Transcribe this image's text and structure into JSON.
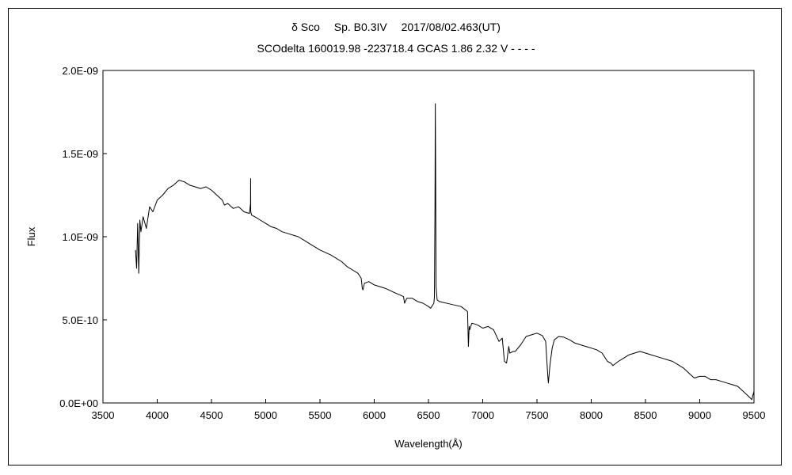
{
  "chart_data": {
    "type": "line",
    "title": "δ Sco　 Sp. B0.3IV　 2017/08/02.463(UT)",
    "subtitle": "SCOdelta 160019.98 -223718.4 GCAS 1.86 2.32 V - - - -",
    "xlabel": "Wavelength(Å)",
    "ylabel": "Flux",
    "xlim": [
      3500,
      9500
    ],
    "ylim": [
      0,
      2e-09
    ],
    "x_ticks": [
      3500,
      4000,
      4500,
      5000,
      5500,
      6000,
      6500,
      7000,
      7500,
      8000,
      8500,
      9000,
      9500
    ],
    "x_tick_labels": [
      "3500",
      "4000",
      "4500",
      "5000",
      "5500",
      "6000",
      "6500",
      "7000",
      "7500",
      "8000",
      "8500",
      "9000",
      "9500"
    ],
    "y_ticks": [
      0,
      5e-10,
      1e-09,
      1.5e-09,
      2e-09
    ],
    "y_tick_labels": [
      "0.0E+00",
      "5.0E-10",
      "1.0E-09",
      "1.5E-09",
      "2.0E-09"
    ],
    "grid": false,
    "legend": "none",
    "line_color": "#000000",
    "series": [
      {
        "x": [
          3800,
          3810,
          3820,
          3830,
          3840,
          3850,
          3870,
          3900,
          3930,
          3960,
          4000,
          4050,
          4100,
          4150,
          4200,
          4250,
          4300,
          4350,
          4400,
          4450,
          4500,
          4550,
          4600,
          4620,
          4650,
          4700,
          4750,
          4800,
          4850,
          4860,
          4861,
          4862,
          4870,
          4900,
          4950,
          5000,
          5050,
          5100,
          5150,
          5200,
          5300,
          5400,
          5500,
          5600,
          5700,
          5750,
          5800,
          5850,
          5880,
          5890,
          5896,
          5910,
          5950,
          6000,
          6100,
          6200,
          6270,
          6280,
          6300,
          6350,
          6400,
          6450,
          6500,
          6520,
          6550,
          6555,
          6560,
          6563,
          6566,
          6570,
          6580,
          6600,
          6700,
          6800,
          6860,
          6868,
          6875,
          6880,
          6900,
          6950,
          7000,
          7050,
          7100,
          7150,
          7180,
          7200,
          7220,
          7240,
          7250,
          7280,
          7300,
          7350,
          7400,
          7450,
          7500,
          7550,
          7580,
          7600,
          7605,
          7620,
          7640,
          7660,
          7700,
          7750,
          7800,
          7850,
          7900,
          7950,
          8000,
          8050,
          8100,
          8150,
          8180,
          8200,
          8250,
          8300,
          8350,
          8400,
          8450,
          8500,
          8550,
          8600,
          8650,
          8700,
          8750,
          8800,
          8850,
          8900,
          8950,
          9000,
          9050,
          9100,
          9150,
          9200,
          9250,
          9300,
          9350,
          9400,
          9450,
          9480,
          9500
        ],
        "values": [
          9.2e-10,
          8.1e-10,
          1.08e-09,
          7.8e-10,
          1.1e-09,
          1.03e-09,
          1.12e-09,
          1.05e-09,
          1.18e-09,
          1.15e-09,
          1.22e-09,
          1.25e-09,
          1.29e-09,
          1.31e-09,
          1.34e-09,
          1.33e-09,
          1.31e-09,
          1.3e-09,
          1.29e-09,
          1.3e-09,
          1.28e-09,
          1.25e-09,
          1.22e-09,
          1.19e-09,
          1.2e-09,
          1.17e-09,
          1.18e-09,
          1.15e-09,
          1.14e-09,
          1.2e-09,
          1.35e-09,
          1.15e-09,
          1.13e-09,
          1.12e-09,
          1.1e-09,
          1.08e-09,
          1.06e-09,
          1.05e-09,
          1.03e-09,
          1.02e-09,
          1e-09,
          9.6e-10,
          9.2e-10,
          8.9e-10,
          8.5e-10,
          8.2e-10,
          8e-10,
          7.8e-10,
          7.5e-10,
          6.9e-10,
          6.8e-10,
          7.2e-10,
          7.3e-10,
          7.1e-10,
          6.9e-10,
          6.6e-10,
          6.4e-10,
          6e-10,
          6.3e-10,
          6.3e-10,
          6.1e-10,
          6e-10,
          5.8e-10,
          5.7e-10,
          6e-10,
          6.4e-10,
          1.2e-09,
          1.8e-09,
          1.4e-09,
          7e-10,
          6.2e-10,
          6.1e-10,
          5.95e-10,
          5.8e-10,
          5.5e-10,
          3.4e-10,
          4.6e-10,
          4.4e-10,
          4.8e-10,
          4.7e-10,
          4.5e-10,
          4.6e-10,
          4.4e-10,
          3.7e-10,
          3.9e-10,
          2.5e-10,
          2.4e-10,
          3.4e-10,
          3e-10,
          3.1e-10,
          3.1e-10,
          3.5e-10,
          4e-10,
          4.1e-10,
          4.2e-10,
          4.05e-10,
          3.7e-10,
          1.6e-10,
          1.2e-10,
          2.3e-10,
          3.3e-10,
          3.8e-10,
          4e-10,
          3.95e-10,
          3.8e-10,
          3.6e-10,
          3.5e-10,
          3.4e-10,
          3.3e-10,
          3.2e-10,
          3e-10,
          2.5e-10,
          2.4e-10,
          2.25e-10,
          2.5e-10,
          2.7e-10,
          2.9e-10,
          3e-10,
          3.1e-10,
          3e-10,
          2.9e-10,
          2.8e-10,
          2.7e-10,
          2.6e-10,
          2.5e-10,
          2.3e-10,
          2.1e-10,
          1.8e-10,
          1.5e-10,
          1.6e-10,
          1.6e-10,
          1.4e-10,
          1.4e-10,
          1.3e-10,
          1.2e-10,
          1.1e-10,
          1e-10,
          7e-11,
          4e-11,
          2e-11,
          7e-11
        ]
      }
    ]
  }
}
